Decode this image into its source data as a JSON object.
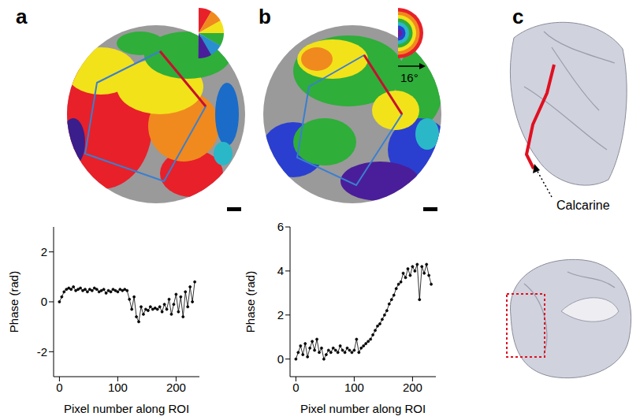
{
  "panel_labels": [
    "a",
    "b",
    "c"
  ],
  "annotations": {
    "legend_b_scale": "16°",
    "arrow_label": "Calcarine"
  },
  "chart_data": [
    {
      "type": "line",
      "x_label": "Pixel number along ROI",
      "y_label": "Phase (rad)",
      "color": "#000000",
      "marker": "dot",
      "line_style": "solid",
      "xlim": [
        -10,
        240
      ],
      "xticks": [
        0,
        100,
        200
      ],
      "ylim": [
        -3,
        3
      ],
      "yticks": [
        -2,
        0,
        2
      ],
      "x": [
        0,
        4,
        8,
        12,
        16,
        20,
        24,
        28,
        32,
        36,
        40,
        44,
        48,
        52,
        56,
        60,
        64,
        68,
        72,
        76,
        80,
        84,
        88,
        92,
        96,
        100,
        104,
        108,
        112,
        116,
        120,
        124,
        128,
        132,
        136,
        140,
        144,
        148,
        152,
        156,
        160,
        164,
        168,
        172,
        176,
        180,
        184,
        188,
        192,
        196,
        200,
        204,
        208,
        212,
        216,
        220,
        224,
        228,
        232
      ],
      "values": [
        0.0,
        0.2,
        0.4,
        0.5,
        0.55,
        0.5,
        0.6,
        0.45,
        0.5,
        0.55,
        0.45,
        0.5,
        0.4,
        0.5,
        0.45,
        0.55,
        0.5,
        0.4,
        0.45,
        0.5,
        0.35,
        0.45,
        0.4,
        0.5,
        0.45,
        0.4,
        0.5,
        0.45,
        0.5,
        0.45,
        0.1,
        -0.3,
        0.2,
        -0.6,
        -0.8,
        -0.2,
        -0.5,
        -0.3,
        -0.35,
        -0.2,
        -0.3,
        -0.25,
        -0.3,
        -0.2,
        -0.4,
        -0.1,
        -0.3,
        0.1,
        -0.5,
        -0.1,
        0.3,
        -0.4,
        0.2,
        -0.6,
        0.4,
        -0.2,
        0.6,
        0.0,
        0.8
      ]
    },
    {
      "type": "line",
      "x_label": "Pixel number along ROI",
      "y_label": "Phase (rad)",
      "color": "#000000",
      "marker": "dot",
      "line_style": "solid",
      "xlim": [
        -10,
        240
      ],
      "xticks": [
        0,
        100,
        200
      ],
      "ylim": [
        -0.8,
        6
      ],
      "yticks": [
        0,
        2,
        4,
        6
      ],
      "x": [
        0,
        4,
        8,
        12,
        16,
        20,
        24,
        28,
        32,
        36,
        40,
        44,
        48,
        52,
        56,
        60,
        64,
        68,
        72,
        76,
        80,
        84,
        88,
        92,
        96,
        100,
        104,
        108,
        112,
        116,
        120,
        124,
        128,
        132,
        136,
        140,
        144,
        148,
        152,
        156,
        160,
        164,
        168,
        172,
        176,
        180,
        184,
        188,
        192,
        196,
        200,
        204,
        208,
        212,
        216,
        220,
        224,
        228,
        232
      ],
      "values": [
        0.0,
        0.3,
        0.6,
        0.2,
        0.7,
        0.1,
        0.5,
        0.8,
        0.4,
        0.9,
        0.3,
        0.5,
        0.0,
        0.2,
        0.4,
        0.3,
        0.5,
        0.4,
        0.3,
        0.6,
        0.4,
        0.3,
        0.5,
        0.4,
        0.3,
        0.4,
        0.9,
        0.3,
        0.5,
        0.6,
        0.7,
        0.8,
        0.9,
        1.1,
        1.3,
        1.5,
        1.6,
        1.8,
        2.0,
        2.2,
        2.5,
        2.7,
        2.9,
        3.2,
        3.4,
        3.5,
        3.9,
        3.7,
        4.1,
        3.8,
        4.2,
        4.0,
        4.3,
        2.7,
        4.2,
        3.9,
        4.3,
        3.8,
        3.4
      ]
    }
  ]
}
